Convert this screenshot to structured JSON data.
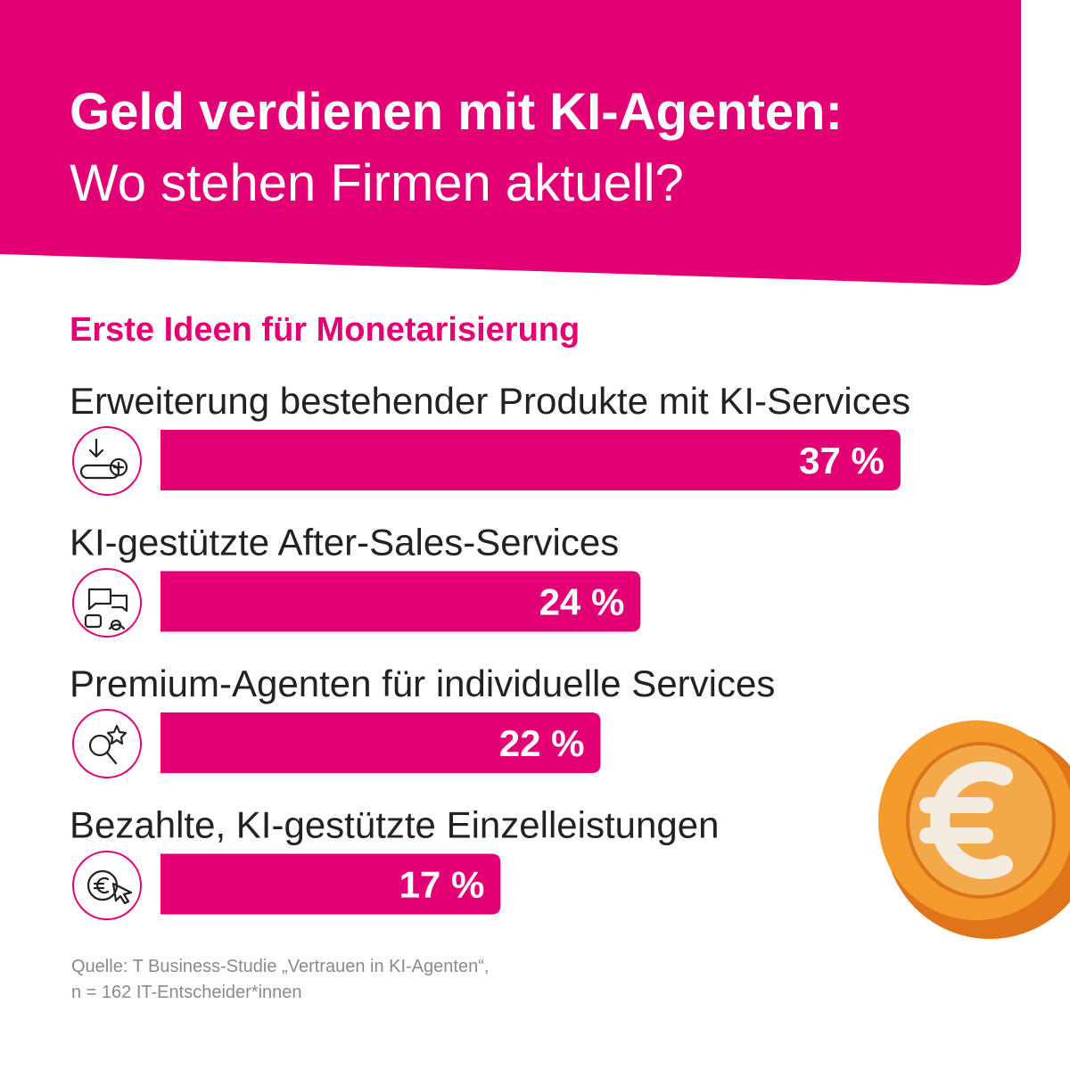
{
  "chart_data": {
    "type": "bar",
    "orientation": "horizontal",
    "title": "Geld verdienen mit KI-Agenten:",
    "subtitle": "Wo stehen Firmen aktuell?",
    "heading": "Erste Ideen für Monetarisierung",
    "categories": [
      "Erweiterung bestehender Produkte mit KI-Services",
      "KI-gestützte After-Sales-Services",
      "Premium-Agenten für individuelle Services",
      "Bezahlte, KI-gestützte Einzelleistungen"
    ],
    "values": [
      37,
      24,
      22,
      17
    ],
    "value_labels": [
      "37 %",
      "24 %",
      "22 %",
      "17 %"
    ],
    "color": "#e20074",
    "source": [
      "Quelle: T Business-Studie „Vertrauen in KI-Agenten“,",
      "n = 162 IT-Entscheider*innen"
    ]
  }
}
